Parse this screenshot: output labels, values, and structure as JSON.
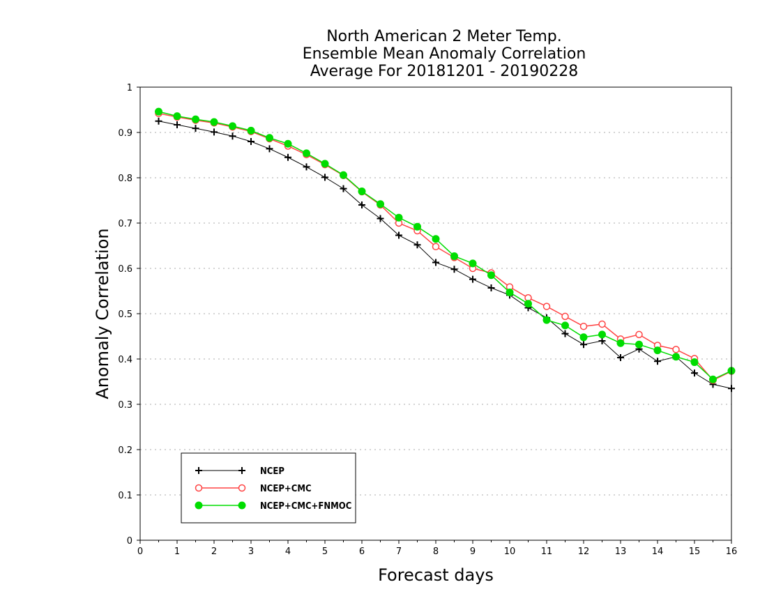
{
  "chart_data": {
    "type": "line",
    "title": [
      "North American 2 Meter Temp.",
      "Ensemble Mean Anomaly Correlation",
      "Average For 20181201 - 20190228"
    ],
    "xlabel": "Forecast days",
    "ylabel": "Anomaly Correlation",
    "xlim": [
      0,
      16
    ],
    "ylim": [
      0,
      1
    ],
    "xticks": [
      0,
      1,
      2,
      3,
      4,
      5,
      6,
      7,
      8,
      9,
      10,
      11,
      12,
      13,
      14,
      15,
      16
    ],
    "yticks": [
      0,
      0.1,
      0.2,
      0.3,
      0.4,
      0.5,
      0.6,
      0.7,
      0.8,
      0.9,
      1
    ],
    "xtick_labels": [
      "0",
      "1",
      "2",
      "3",
      "4",
      "5",
      "6",
      "7",
      "8",
      "9",
      "10",
      "11",
      "12",
      "13",
      "14",
      "15",
      "16"
    ],
    "ytick_labels": [
      "0",
      "0.1",
      "0.2",
      "0.3",
      "0.4",
      "0.5",
      "0.6",
      "0.7",
      "0.8",
      "0.9",
      "1"
    ],
    "grid": "horizontal dotted",
    "legend_position": "bottom-left",
    "x": [
      0.5,
      1,
      1.5,
      2,
      2.5,
      3,
      3.5,
      4,
      4.5,
      5,
      5.5,
      6,
      6.5,
      7,
      7.5,
      8,
      8.5,
      9,
      9.5,
      10,
      10.5,
      11,
      11.5,
      12,
      12.5,
      13,
      13.5,
      14,
      14.5,
      15,
      15.5,
      16
    ],
    "series": [
      {
        "name": "NCEP",
        "color": "#000000",
        "marker": "plus",
        "values": [
          0.925,
          0.917,
          0.909,
          0.901,
          0.892,
          0.88,
          0.864,
          0.845,
          0.824,
          0.801,
          0.776,
          0.74,
          0.71,
          0.673,
          0.652,
          0.613,
          0.598,
          0.576,
          0.557,
          0.541,
          0.513,
          0.491,
          0.456,
          0.432,
          0.44,
          0.403,
          0.422,
          0.395,
          0.405,
          0.369,
          0.344,
          0.335
        ]
      },
      {
        "name": "NCEP+CMC",
        "color": "#ff4444",
        "marker": "open-circle",
        "values": [
          0.942,
          0.934,
          0.927,
          0.921,
          0.912,
          0.902,
          0.886,
          0.87,
          0.851,
          0.829,
          0.805,
          0.769,
          0.74,
          0.7,
          0.683,
          0.648,
          0.624,
          0.6,
          0.59,
          0.559,
          0.535,
          0.516,
          0.494,
          0.472,
          0.477,
          0.444,
          0.454,
          0.43,
          0.421,
          0.401,
          0.353,
          0.373
        ]
      },
      {
        "name": "NCEP+CMC+FNMOC",
        "color": "#00dd00",
        "marker": "filled-circle",
        "values": [
          0.946,
          0.936,
          0.929,
          0.923,
          0.914,
          0.904,
          0.888,
          0.875,
          0.854,
          0.831,
          0.806,
          0.77,
          0.742,
          0.712,
          0.692,
          0.665,
          0.627,
          0.611,
          0.585,
          0.547,
          0.522,
          0.486,
          0.474,
          0.448,
          0.454,
          0.435,
          0.432,
          0.419,
          0.405,
          0.393,
          0.355,
          0.374
        ]
      }
    ]
  }
}
